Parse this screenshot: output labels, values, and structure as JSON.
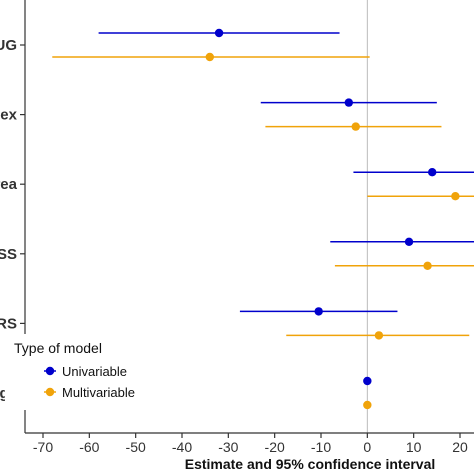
{
  "chart_data": {
    "type": "scatter",
    "subtype": "forest-plot",
    "xlabel": "Estimate and 95% confidence interval",
    "xlim": [
      -72,
      23
    ],
    "xticks": [
      -70,
      -60,
      -50,
      -40,
      -30,
      -20,
      -10,
      0,
      10,
      20
    ],
    "xtick_labels": [
      "-70",
      "-60",
      "-50",
      "-40",
      "-30",
      "-20",
      "-10",
      "0",
      "10",
      "20"
    ],
    "reference_line": 0,
    "grid": false,
    "categories": [
      "UG",
      "Sex",
      "rea",
      "SS",
      "IRS",
      "Age"
    ],
    "legend": {
      "title": "Type of model",
      "placement": "bottom-left",
      "entries": [
        "Univariable",
        "Multivariable"
      ]
    },
    "series": [
      {
        "name": "Univariable",
        "color": "#0000cc",
        "points": [
          {
            "category": "UG",
            "estimate": -32,
            "lower": -58,
            "upper": -6
          },
          {
            "category": "Sex",
            "estimate": -4,
            "lower": -23,
            "upper": 15
          },
          {
            "category": "rea",
            "estimate": 14,
            "lower": -3,
            "upper": 31
          },
          {
            "category": "SS",
            "estimate": 9,
            "lower": -8,
            "upper": 26
          },
          {
            "category": "IRS",
            "estimate": -10.5,
            "lower": -27.5,
            "upper": 6.5
          },
          {
            "category": "Age",
            "estimate": 0,
            "lower": -0.3,
            "upper": 0.3
          }
        ]
      },
      {
        "name": "Multivariable",
        "color": "#f0a30a",
        "points": [
          {
            "category": "UG",
            "estimate": -34,
            "lower": -68,
            "upper": 0.5
          },
          {
            "category": "Sex",
            "estimate": -2.5,
            "lower": -22,
            "upper": 16
          },
          {
            "category": "rea",
            "estimate": 19,
            "lower": 0,
            "upper": 30
          },
          {
            "category": "SS",
            "estimate": 13,
            "lower": -7,
            "upper": 30
          },
          {
            "category": "IRS",
            "estimate": 2.5,
            "lower": -17.5,
            "upper": 22
          },
          {
            "category": "Age",
            "estimate": 0,
            "lower": -0.3,
            "upper": 0.3
          }
        ]
      }
    ]
  }
}
